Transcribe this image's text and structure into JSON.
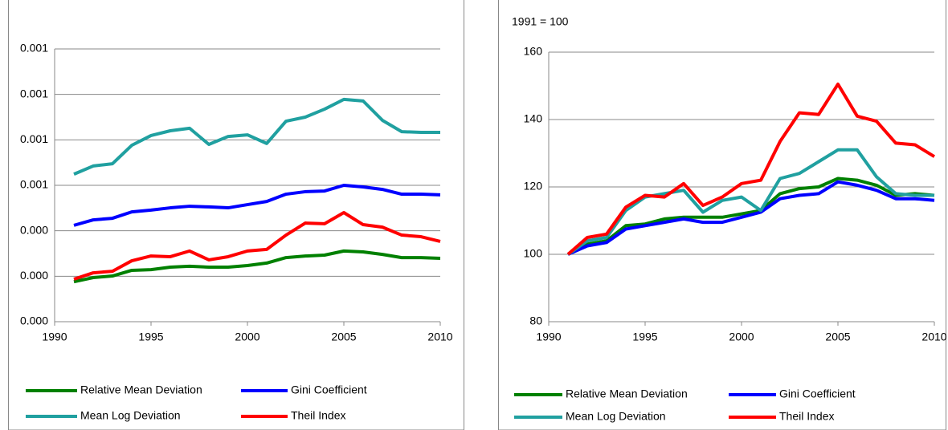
{
  "chart_data": [
    {
      "type": "line",
      "x": [
        1991,
        1992,
        1993,
        1994,
        1995,
        1996,
        1997,
        1998,
        1999,
        2000,
        2001,
        2002,
        2003,
        2004,
        2005,
        2006,
        2007,
        2008,
        2009,
        2010
      ],
      "xlim": [
        1990,
        2010
      ],
      "xticks": [
        1990,
        1995,
        2000,
        2005,
        2010
      ],
      "ylim": [
        0,
        0.0012
      ],
      "yticks": [
        {
          "value": 0,
          "label": "0.000"
        },
        {
          "value": 0.0002,
          "label": "0.000"
        },
        {
          "value": 0.0004,
          "label": "0.000"
        },
        {
          "value": 0.0006,
          "label": "0.001"
        },
        {
          "value": 0.0008,
          "label": "0.001"
        },
        {
          "value": 0.001,
          "label": "0.001"
        },
        {
          "value": 0.0012,
          "label": "0.001"
        }
      ],
      "grid": true,
      "series": [
        {
          "name": "Relative Mean Deviation",
          "color": "#008000",
          "values": [
            0.000176,
            0.000194,
            0.000201,
            0.000226,
            0.000229,
            0.00024,
            0.000244,
            0.00024,
            0.00024,
            0.000247,
            0.000258,
            0.000282,
            0.000289,
            0.000293,
            0.000311,
            0.000307,
            0.000296,
            0.000282,
            0.000282,
            0.000279
          ]
        },
        {
          "name": "Gini Coefficient",
          "color": "#0000ff",
          "values": [
            0.000424,
            0.000448,
            0.000455,
            0.000483,
            0.000491,
            0.000501,
            0.000508,
            0.000505,
            0.000501,
            0.000515,
            0.000529,
            0.000561,
            0.000572,
            0.000575,
            0.0006,
            0.000593,
            0.000582,
            0.000561,
            0.000561,
            0.000558
          ]
        },
        {
          "name": "Mean Log Deviation",
          "color": "#20a0a0",
          "values": [
            0.000649,
            0.000685,
            0.000695,
            0.000776,
            0.000819,
            0.00084,
            0.000851,
            0.00078,
            0.000815,
            0.000822,
            0.000784,
            0.000882,
            0.0009,
            0.000935,
            0.000978,
            0.000971,
            0.000886,
            0.000836,
            0.000833,
            0.000833
          ]
        },
        {
          "name": "Theil Index",
          "color": "#ff0000",
          "values": [
            0.000187,
            0.000215,
            0.000222,
            0.000268,
            0.000289,
            0.000286,
            0.000311,
            0.000272,
            0.000286,
            0.000311,
            0.000318,
            0.000381,
            0.000434,
            0.000431,
            0.00048,
            0.000427,
            0.000416,
            0.000381,
            0.000374,
            0.000353
          ]
        }
      ]
    },
    {
      "type": "line",
      "annotation": "1991 = 100",
      "x": [
        1991,
        1992,
        1993,
        1994,
        1995,
        1996,
        1997,
        1998,
        1999,
        2000,
        2001,
        2002,
        2003,
        2004,
        2005,
        2006,
        2007,
        2008,
        2009,
        2010
      ],
      "xlim": [
        1990,
        2010
      ],
      "xticks": [
        1990,
        1995,
        2000,
        2005,
        2010
      ],
      "ylim": [
        80,
        160
      ],
      "yticks": [
        80,
        100,
        120,
        140,
        160
      ],
      "grid": true,
      "series": [
        {
          "name": "Relative Mean Deviation",
          "color": "#008000",
          "values": [
            100,
            103,
            104,
            108.5,
            109,
            110.5,
            111,
            111,
            111,
            112,
            113,
            118,
            119.5,
            120,
            122.5,
            122,
            120.5,
            117.5,
            118,
            117.5
          ]
        },
        {
          "name": "Gini Coefficient",
          "color": "#0000ff",
          "values": [
            100,
            102.5,
            103.5,
            107.5,
            108.5,
            109.5,
            110.5,
            109.5,
            109.5,
            111,
            112.5,
            116.5,
            117.5,
            118,
            121.5,
            120.5,
            119,
            116.5,
            116.5,
            116
          ]
        },
        {
          "name": "Mean Log Deviation",
          "color": "#20a0a0",
          "values": [
            100,
            104,
            105,
            113,
            117,
            118,
            119,
            112.5,
            116,
            117,
            113,
            122.5,
            124,
            127.5,
            131,
            131,
            123,
            118,
            117.5,
            117.5
          ]
        },
        {
          "name": "Theil Index",
          "color": "#ff0000",
          "values": [
            100,
            105,
            106,
            114,
            117.5,
            117,
            121,
            114.5,
            117,
            121,
            122,
            133.5,
            142,
            141.5,
            150.5,
            141,
            139.5,
            133,
            132.5,
            129
          ]
        }
      ]
    }
  ]
}
